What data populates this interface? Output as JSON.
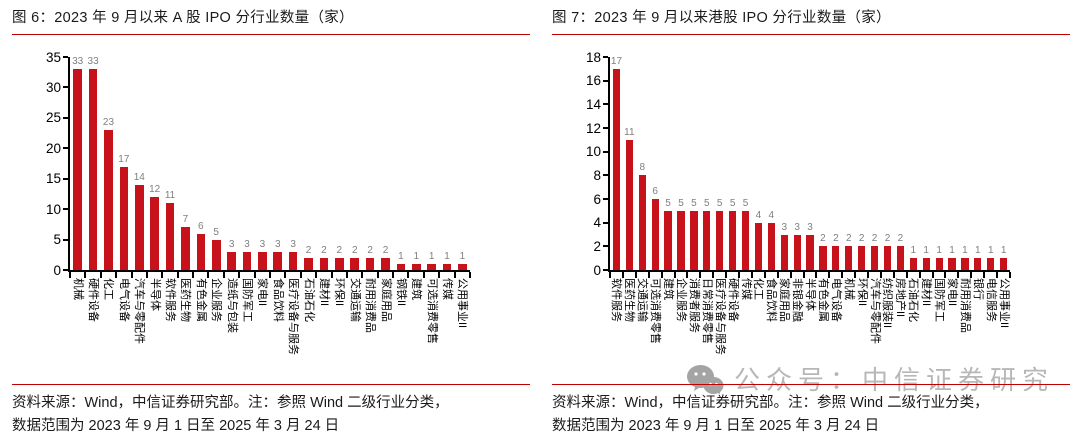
{
  "panels": [
    {
      "title": "图 6：2023 年 9 月以来 A 股 IPO 分行业数量（家）",
      "source_note_line1": "资料来源：Wind，中信证券研究部。注：参照 Wind 二级行业分类，",
      "source_note_line2": "数据范围为 2023 年 9 月 1 日至 2025 年 3 月 24 日"
    },
    {
      "title": "图 7：2023 年 9 月以来港股 IPO 分行业数量（家）",
      "source_note_line1": "资料来源：Wind，中信证券研究部。注：参照 Wind 二级行业分类，",
      "source_note_line2": "数据范围为 2023 年 9 月 1 日至 2025 年 3 月 24 日"
    }
  ],
  "watermark": {
    "text": "公众号：中信证券研究",
    "icon": "wechat-icon"
  },
  "colors": {
    "bar": "#C8121B",
    "accent_line": "#C00000",
    "value_label": "#7F7F7F",
    "axis": "#000000",
    "watermark": "#B7B7B7"
  },
  "chart_data": [
    {
      "type": "bar",
      "title": "图 6：2023 年 9 月以来 A 股 IPO 分行业数量（家）",
      "categories": [
        "机械",
        "硬件设备",
        "化工",
        "电气设备",
        "汽车与零配件",
        "半导体",
        "软件服务",
        "医药生物",
        "有色金属",
        "企业服务",
        "造纸与包装",
        "国防军工",
        "家电II",
        "食品饮料",
        "医疗设备与服务",
        "石油石化",
        "建材II",
        "环保II",
        "交通运输",
        "耐用消费品",
        "家庭用品",
        "钢铁II",
        "建筑",
        "可选消费零售",
        "传媒",
        "公用事业II"
      ],
      "values": [
        33,
        33,
        23,
        17,
        14,
        12,
        11,
        7,
        6,
        5,
        3,
        3,
        3,
        3,
        3,
        2,
        2,
        2,
        2,
        2,
        2,
        1,
        1,
        1,
        1,
        1
      ],
      "xlabel": "",
      "ylabel": "",
      "ylim": [
        0,
        35
      ],
      "ytick_step": 5,
      "grid": false,
      "legend": null,
      "value_labels": true
    },
    {
      "type": "bar",
      "title": "图 7：2023 年 9 月以来港股 IPO 分行业数量（家）",
      "categories": [
        "软件服务",
        "医药生物",
        "交通运输",
        "可选消费零售",
        "建筑",
        "企业服务",
        "消费者服务",
        "日常消费零售",
        "医疗设备与服务",
        "硬件设备",
        "传媒",
        "化工",
        "食品饮料",
        "家庭用品",
        "非银金融",
        "半导体",
        "有色金属",
        "电气设备",
        "机械",
        "环保II",
        "汽车与零配件",
        "纺织服装II",
        "房地产II",
        "石油石化",
        "建材II",
        "国防军工",
        "家电II",
        "耐用消费品",
        "银行",
        "电信服务",
        "公用事业II"
      ],
      "values": [
        17,
        11,
        8,
        6,
        5,
        5,
        5,
        5,
        5,
        5,
        5,
        4,
        4,
        3,
        3,
        3,
        2,
        2,
        2,
        2,
        2,
        2,
        2,
        1,
        1,
        1,
        1,
        1,
        1,
        1,
        1
      ],
      "xlabel": "",
      "ylabel": "",
      "ylim": [
        0,
        18
      ],
      "ytick_step": 2,
      "grid": false,
      "legend": null,
      "value_labels": true
    }
  ]
}
